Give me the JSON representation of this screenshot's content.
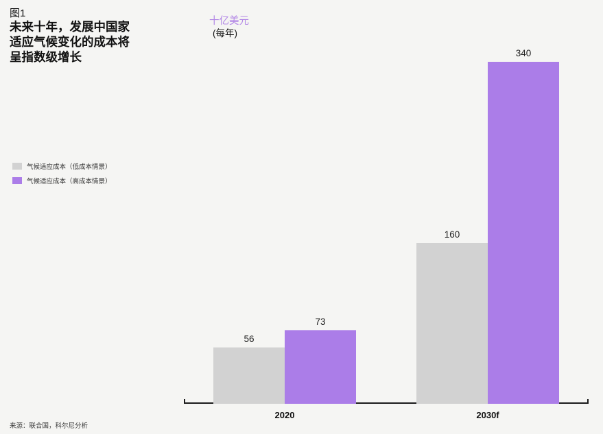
{
  "figure": {
    "label": "图1",
    "title_lines": [
      "未来十年，发展中国家",
      "适应气候变化的成本将",
      "呈指数级增长"
    ]
  },
  "unit": {
    "primary": "十亿美元",
    "secondary": "(每年)"
  },
  "legend": [
    {
      "label": "气候适应成本（低成本情景）",
      "color": "#d2d2d2"
    },
    {
      "label": "气候适应成本（高成本情景）",
      "color": "#ab7de8"
    }
  ],
  "source": "来源：联合国，科尔尼分析",
  "colors": {
    "background": "#f5f5f3",
    "axis": "#1a1a1a",
    "unit_label": "#b287e6",
    "low_series": "#d2d2d2",
    "high_series": "#ab7de8",
    "value_label": "#222222"
  },
  "chart_data": {
    "type": "bar",
    "categories": [
      "2020",
      "2030f"
    ],
    "series": [
      {
        "name": "气候适应成本（低成本情景）",
        "color": "#d2d2d2",
        "values": [
          56,
          160
        ]
      },
      {
        "name": "气候适应成本（高成本情景）",
        "color": "#ab7de8",
        "values": [
          73,
          340
        ]
      }
    ],
    "ylabel": "十亿美元 (每年)",
    "ylim": [
      0,
      360
    ],
    "grid": false,
    "value_labels": true,
    "legend_position": "left-middle",
    "title": "未来十年，发展中国家适应气候变化的成本将呈指数级增长"
  }
}
